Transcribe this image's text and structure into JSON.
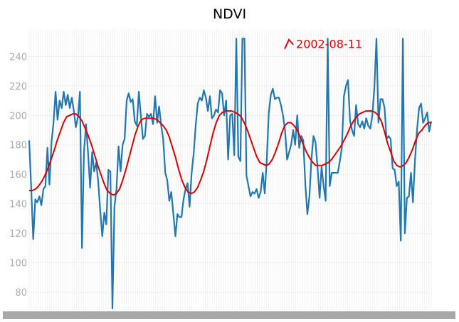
{
  "colors": {
    "series_raw": "#1f77b4",
    "series_smooth": "#e00000",
    "annotation": "#e00000",
    "tick_label": "#aaaaaa",
    "grid": "#eaeaea",
    "axis_band": "#a8a8a8"
  },
  "chart_data": {
    "type": "line",
    "title": "NDVI",
    "xlabel": "",
    "ylabel": "",
    "ylim": [
      68,
      258
    ],
    "yticks": [
      80,
      100,
      120,
      140,
      160,
      180,
      200,
      220,
      240
    ],
    "xlim": [
      0,
      178
    ],
    "grid": true,
    "annotation": {
      "text": "2002-08-11",
      "x": 115,
      "y": 248
    },
    "series": [
      {
        "style": "raw",
        "y": [
          183,
          150,
          116,
          143,
          141,
          145,
          139,
          150,
          152,
          178,
          153,
          182,
          195,
          216,
          197,
          210,
          205,
          216,
          207,
          214,
          205,
          212,
          203,
          192,
          199,
          216,
          110,
          175,
          194,
          174,
          151,
          175,
          162,
          168,
          155,
          135,
          118,
          134,
          126,
          163,
          162,
          69,
          138,
          150,
          179,
          162,
          180,
          184,
          210,
          215,
          209,
          211,
          196,
          193,
          216,
          200,
          184,
          186,
          201,
          199,
          201,
          194,
          213,
          195,
          206,
          193,
          184,
          161,
          156,
          142,
          148,
          133,
          118,
          133,
          131,
          131,
          143,
          150,
          154,
          138,
          161,
          174,
          193,
          208,
          212,
          210,
          217,
          212,
          203,
          213,
          198,
          200,
          204,
          202,
          217,
          215,
          200,
          210,
          170,
          200,
          201,
          173,
          252,
          172,
          169,
          252,
          252,
          159,
          152,
          145,
          148,
          147,
          150,
          144,
          148,
          161,
          147,
          170,
          202,
          214,
          218,
          211,
          212,
          212,
          207,
          200,
          190,
          170,
          175,
          180,
          190,
          180,
          200,
          178,
          186,
          183,
          153,
          133,
          145,
          170,
          186,
          182,
          165,
          144,
          165,
          152,
          142,
          252,
          152,
          161,
          161,
          161,
          161,
          169,
          178,
          213,
          220,
          224,
          196,
          190,
          186,
          207,
          194,
          192,
          196,
          191,
          198,
          193,
          191,
          200,
          219,
          252,
          195,
          211,
          211,
          205,
          184,
          186,
          184,
          164,
          163,
          152,
          155,
          115,
          252,
          120,
          144,
          145,
          161,
          141,
          170,
          190,
          205,
          208,
          195,
          198,
          202,
          189,
          196
        ]
      },
      {
        "style": "smooth",
        "y": [
          149,
          149,
          150,
          152,
          155,
          159,
          164,
          170,
          176,
          183,
          189,
          195,
          199,
          200,
          201,
          201,
          199,
          196,
          191,
          186,
          180,
          173,
          166,
          160,
          154,
          149,
          147,
          146,
          147,
          150,
          156,
          163,
          171,
          179,
          187,
          193,
          197,
          198,
          198,
          198,
          198,
          197,
          195,
          193,
          190,
          185,
          178,
          171,
          163,
          156,
          151,
          148,
          147,
          148,
          151,
          156,
          162,
          170,
          179,
          188,
          195,
          200,
          202,
          203,
          203,
          203,
          202,
          201,
          199,
          195,
          190,
          184,
          178,
          172,
          168,
          167,
          166,
          167,
          170,
          175,
          181,
          188,
          193,
          195,
          195,
          193,
          190,
          185,
          180,
          175,
          171,
          168,
          166,
          166,
          166,
          167,
          168,
          170,
          173,
          176,
          179,
          183,
          187,
          192,
          196,
          199,
          201,
          202,
          203,
          203,
          203,
          202,
          200,
          196,
          189,
          181,
          175,
          169,
          166,
          165,
          166,
          168,
          172,
          177,
          183,
          188,
          190,
          193,
          195,
          195
        ]
      }
    ]
  }
}
